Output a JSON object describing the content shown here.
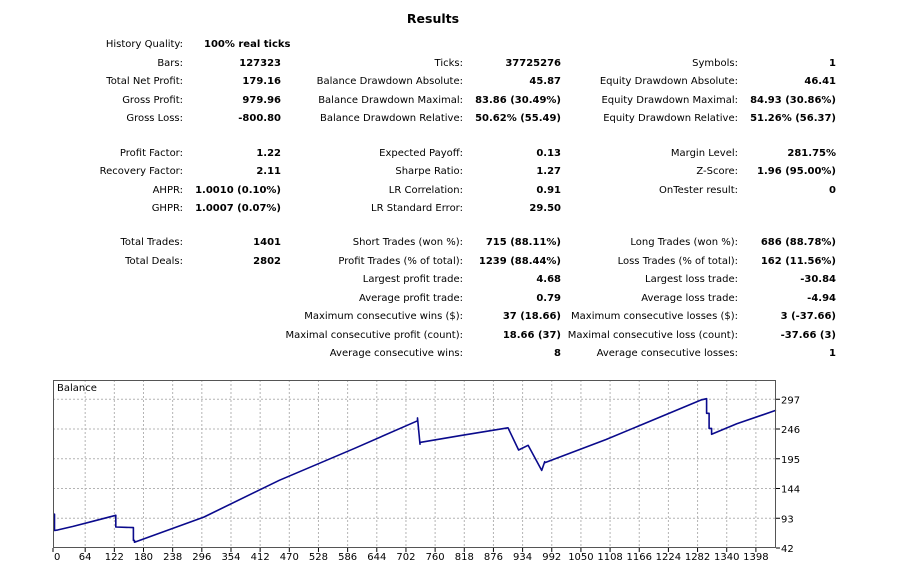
{
  "title": "Results",
  "rows": [
    {
      "row": 0,
      "cells": [
        {
          "col": 0,
          "label": "History Quality:",
          "value": "100% real ticks",
          "align": "left"
        }
      ]
    },
    {
      "row": 1,
      "cells": [
        {
          "col": 0,
          "label": "Bars:",
          "value": "127323"
        },
        {
          "col": 1,
          "label": "Ticks:",
          "value": "37725276"
        },
        {
          "col": 2,
          "label": "Symbols:",
          "value": "1"
        }
      ]
    },
    {
      "row": 2,
      "cells": [
        {
          "col": 0,
          "label": "Total Net Profit:",
          "value": "179.16"
        },
        {
          "col": 1,
          "label": "Balance Drawdown Absolute:",
          "value": "45.87"
        },
        {
          "col": 2,
          "label": "Equity Drawdown Absolute:",
          "value": "46.41"
        }
      ]
    },
    {
      "row": 3,
      "cells": [
        {
          "col": 0,
          "label": "Gross Profit:",
          "value": "979.96"
        },
        {
          "col": 1,
          "label": "Balance Drawdown Maximal:",
          "value": "83.86 (30.49%)"
        },
        {
          "col": 2,
          "label": "Equity Drawdown Maximal:",
          "value": "84.93 (30.86%)"
        }
      ]
    },
    {
      "row": 4,
      "cells": [
        {
          "col": 0,
          "label": "Gross Loss:",
          "value": "-800.80"
        },
        {
          "col": 1,
          "label": "Balance Drawdown Relative:",
          "value": "50.62% (55.49)"
        },
        {
          "col": 2,
          "label": "Equity Drawdown Relative:",
          "value": "51.26% (56.37)"
        }
      ]
    },
    {
      "row": 5,
      "cells": [
        {
          "col": 0,
          "label": "Profit Factor:",
          "value": "1.22"
        },
        {
          "col": 1,
          "label": "Expected Payoff:",
          "value": "0.13"
        },
        {
          "col": 2,
          "label": "Margin Level:",
          "value": "281.75%"
        }
      ]
    },
    {
      "row": 6,
      "cells": [
        {
          "col": 0,
          "label": "Recovery Factor:",
          "value": "2.11"
        },
        {
          "col": 1,
          "label": "Sharpe Ratio:",
          "value": "1.27"
        },
        {
          "col": 2,
          "label": "Z-Score:",
          "value": "1.96 (95.00%)"
        }
      ]
    },
    {
      "row": 7,
      "cells": [
        {
          "col": 0,
          "label": "AHPR:",
          "value": "1.0010 (0.10%)"
        },
        {
          "col": 1,
          "label": "LR Correlation:",
          "value": "0.91"
        },
        {
          "col": 2,
          "label": "OnTester result:",
          "value": "0"
        }
      ]
    },
    {
      "row": 8,
      "cells": [
        {
          "col": 0,
          "label": "GHPR:",
          "value": "1.0007 (0.07%)"
        },
        {
          "col": 1,
          "label": "LR Standard Error:",
          "value": "29.50"
        }
      ]
    },
    {
      "row": 9,
      "cells": [
        {
          "col": 0,
          "label": "Total Trades:",
          "value": "1401"
        },
        {
          "col": 1,
          "label": "Short Trades (won %):",
          "value": "715 (88.11%)"
        },
        {
          "col": 2,
          "label": "Long Trades (won %):",
          "value": "686 (88.78%)"
        }
      ]
    },
    {
      "row": 10,
      "cells": [
        {
          "col": 0,
          "label": "Total Deals:",
          "value": "2802"
        },
        {
          "col": 1,
          "label": "Profit Trades (% of total):",
          "value": "1239 (88.44%)"
        },
        {
          "col": 2,
          "label": "Loss Trades (% of total):",
          "value": "162 (11.56%)"
        }
      ]
    },
    {
      "row": 11,
      "cells": [
        {
          "col": 1,
          "label": "Largest profit trade:",
          "value": "4.68"
        },
        {
          "col": 2,
          "label": "Largest loss trade:",
          "value": "-30.84"
        }
      ]
    },
    {
      "row": 12,
      "cells": [
        {
          "col": 1,
          "label": "Average profit trade:",
          "value": "0.79"
        },
        {
          "col": 2,
          "label": "Average loss trade:",
          "value": "-4.94"
        }
      ]
    },
    {
      "row": 13,
      "cells": [
        {
          "col": 1,
          "label": "Maximum consecutive wins ($):",
          "value": "37 (18.66)"
        },
        {
          "col": 2,
          "label": "Maximum consecutive losses ($):",
          "value": "3 (-37.66)"
        }
      ]
    },
    {
      "row": 14,
      "cells": [
        {
          "col": 1,
          "label": "Maximal consecutive profit (count):",
          "value": "18.66 (37)"
        },
        {
          "col": 2,
          "label": "Maximal consecutive loss (count):",
          "value": "-37.66 (3)"
        }
      ]
    },
    {
      "row": 15,
      "cells": [
        {
          "col": 1,
          "label": "Average consecutive wins:",
          "value": "8"
        },
        {
          "col": 2,
          "label": "Average consecutive losses:",
          "value": "1"
        }
      ]
    }
  ],
  "chart_data": {
    "type": "line",
    "title": "Balance",
    "xlabel": "",
    "ylabel": "",
    "x_ticks": [
      0,
      64,
      122,
      180,
      238,
      296,
      354,
      412,
      470,
      528,
      586,
      644,
      702,
      760,
      818,
      876,
      934,
      992,
      1050,
      1108,
      1166,
      1224,
      1282,
      1340,
      1398
    ],
    "y_ticks": [
      42,
      93,
      144,
      195,
      246,
      297
    ],
    "xlim": [
      0,
      1438
    ],
    "ylim": [
      42,
      330
    ],
    "grid": true,
    "line_color": "#0a0a8c",
    "series": [
      {
        "x": [
          0,
          3,
          3,
          10,
          40,
          80,
          125,
          125,
          160,
          160,
          162,
          162,
          300,
          450,
          600,
          725,
          725,
          730,
          730,
          812,
          905,
          905,
          926,
          926,
          945,
          945,
          972,
          972,
          978,
          978,
          1100,
          1290,
          1300,
          1300,
          1305,
          1305,
          1310,
          1310,
          1360,
          1438
        ],
        "y": [
          100,
          100,
          72,
          73,
          79,
          88,
          98,
          78,
          77,
          55,
          55,
          52,
          95,
          158,
          213,
          260,
          265,
          220,
          223,
          235,
          248,
          248,
          210,
          210,
          218,
          218,
          175,
          175,
          190,
          188,
          228,
          296,
          298,
          273,
          273,
          247,
          247,
          237,
          255,
          278
        ]
      }
    ]
  }
}
